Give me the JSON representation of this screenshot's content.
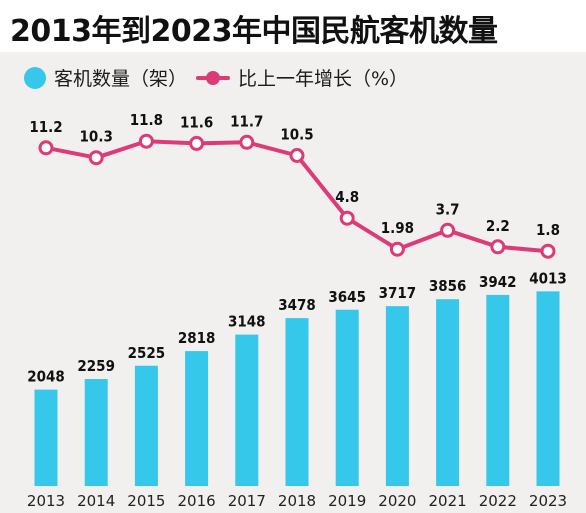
{
  "title": "2013年到2023年中国民航客机数量",
  "colors": {
    "bar": "#35c8ea",
    "line": "#dd3a78",
    "line_marker_fill": "#ffffff"
  },
  "chart_data": {
    "type": "bar+line",
    "title": "2013年到2023年中国民航客机数量",
    "categories": [
      "2013",
      "2014",
      "2015",
      "2016",
      "2017",
      "2018",
      "2019",
      "2020",
      "2021",
      "2022",
      "2023"
    ],
    "series": [
      {
        "name": "客机数量（架）",
        "type": "bar",
        "values": [
          2048,
          2259,
          2525,
          2818,
          3148,
          3478,
          3645,
          3717,
          3856,
          3942,
          4013
        ],
        "value_labels": [
          "2048",
          "2259",
          "2525",
          "2818",
          "3148",
          "3478",
          "3645",
          "3717",
          "3856",
          "3942",
          "4013"
        ]
      },
      {
        "name": "比上一年增长（%）",
        "type": "line",
        "values": [
          11.2,
          10.3,
          11.8,
          11.6,
          11.7,
          10.5,
          4.8,
          1.98,
          3.7,
          2.2,
          1.8
        ],
        "value_labels": [
          "11.2",
          "10.3",
          "11.8",
          "11.6",
          "11.7",
          "10.5",
          "4.8",
          "1.98",
          "3.7",
          "2.2",
          "1.8"
        ]
      }
    ],
    "legend_position": "top-left",
    "grid": false
  }
}
